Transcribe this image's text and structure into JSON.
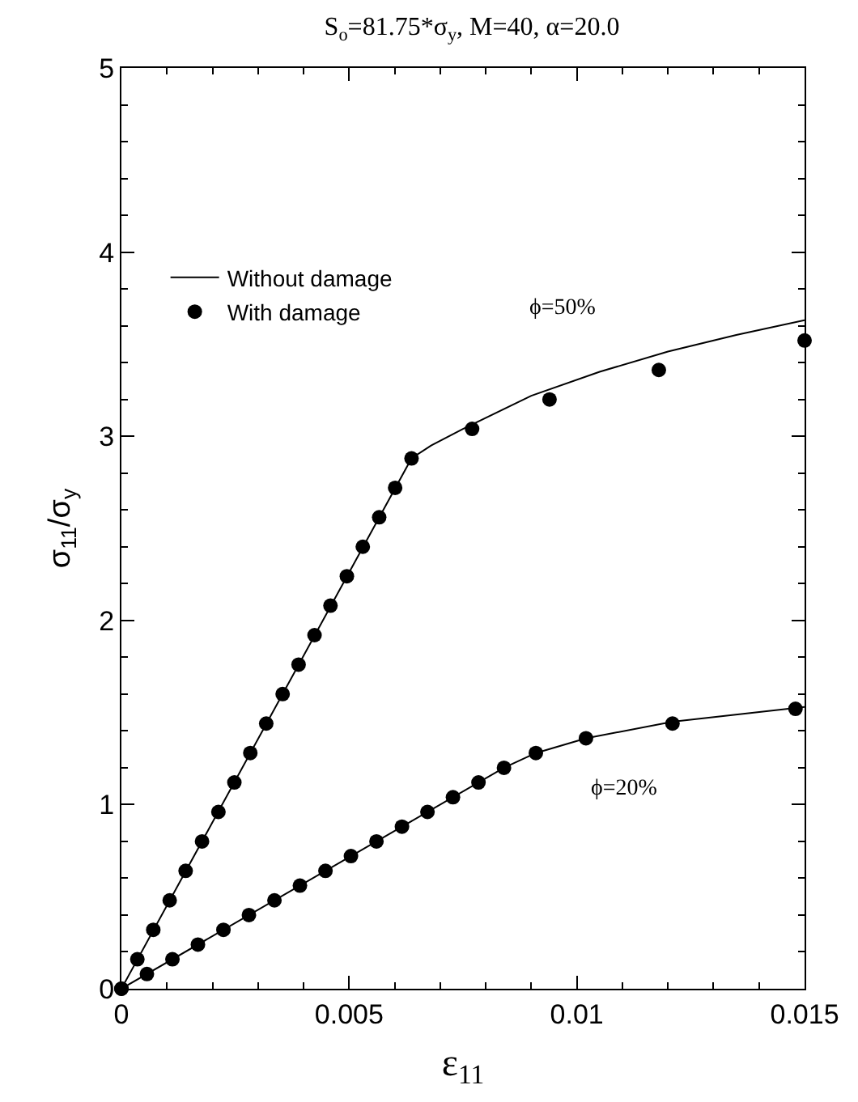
{
  "chart_data": {
    "type": "line",
    "title": "S$_{o}$=81.75*σ$_{y}$, M=40, α=20.0",
    "xlabel": "ε$_{11}$",
    "ylabel": "σ$_{11}$/σ$_{y}$",
    "xlim": [
      0,
      0.015
    ],
    "xticks": [
      0,
      0.005,
      {
        "value": 0.01,
        "label": "0.01"
      },
      0.015
    ],
    "ylim": [
      0,
      5
    ],
    "yticks": [
      0,
      1,
      2,
      3,
      4,
      5
    ],
    "grid": false,
    "legend": "top left",
    "annotations": [
      "ϕ=50%",
      "ϕ=20%"
    ],
    "series": [
      {
        "name": "Without damage",
        "marker": "none",
        "color": "#000000",
        "x": [
          0,
          0.00637,
          0.0068,
          0.0075,
          0.009,
          0.0105,
          0.012,
          0.0135,
          0.015
        ],
        "values": [
          0,
          2.88,
          2.95,
          3.04,
          3.22,
          3.35,
          3.46,
          3.55,
          3.63
        ]
      },
      {
        "marker": "none",
        "color": "#000000",
        "x": [
          0,
          0.0084,
          0.0091,
          0.0102,
          0.0121,
          0.015
        ],
        "values": [
          0,
          1.2,
          1.28,
          1.36,
          1.45,
          1.53
        ]
      },
      {
        "name": "With damage",
        "type": "scatter",
        "marker": "circle",
        "color": "#000000",
        "x": [
          0,
          0.00035,
          0.0007,
          0.00106,
          0.00141,
          0.00177,
          0.00213,
          0.00248,
          0.00283,
          0.00318,
          0.00354,
          0.00389,
          0.00424,
          0.00459,
          0.00495,
          0.0053,
          0.00566,
          0.00601,
          0.00637,
          0.0077,
          0.0094,
          0.0118,
          0.015
        ],
        "values": [
          0,
          0.16,
          0.32,
          0.48,
          0.64,
          0.8,
          0.96,
          1.12,
          1.28,
          1.44,
          1.6,
          1.76,
          1.92,
          2.08,
          2.24,
          2.4,
          2.56,
          2.72,
          2.88,
          3.04,
          3.2,
          3.36,
          3.52
        ]
      },
      {
        "type": "scatter",
        "marker": "circle",
        "color": "#000000",
        "x": [
          0,
          0.00056,
          0.00112,
          0.00168,
          0.00224,
          0.0028,
          0.00336,
          0.00392,
          0.00448,
          0.00504,
          0.0056,
          0.00616,
          0.00672,
          0.00728,
          0.00784,
          0.0084,
          0.0091,
          0.0102,
          0.0121,
          0.0148
        ],
        "values": [
          0,
          0.08,
          0.16,
          0.24,
          0.32,
          0.4,
          0.48,
          0.56,
          0.64,
          0.72,
          0.8,
          0.88,
          0.96,
          1.04,
          1.12,
          1.2,
          1.28,
          1.36,
          1.44,
          1.52
        ]
      }
    ]
  }
}
